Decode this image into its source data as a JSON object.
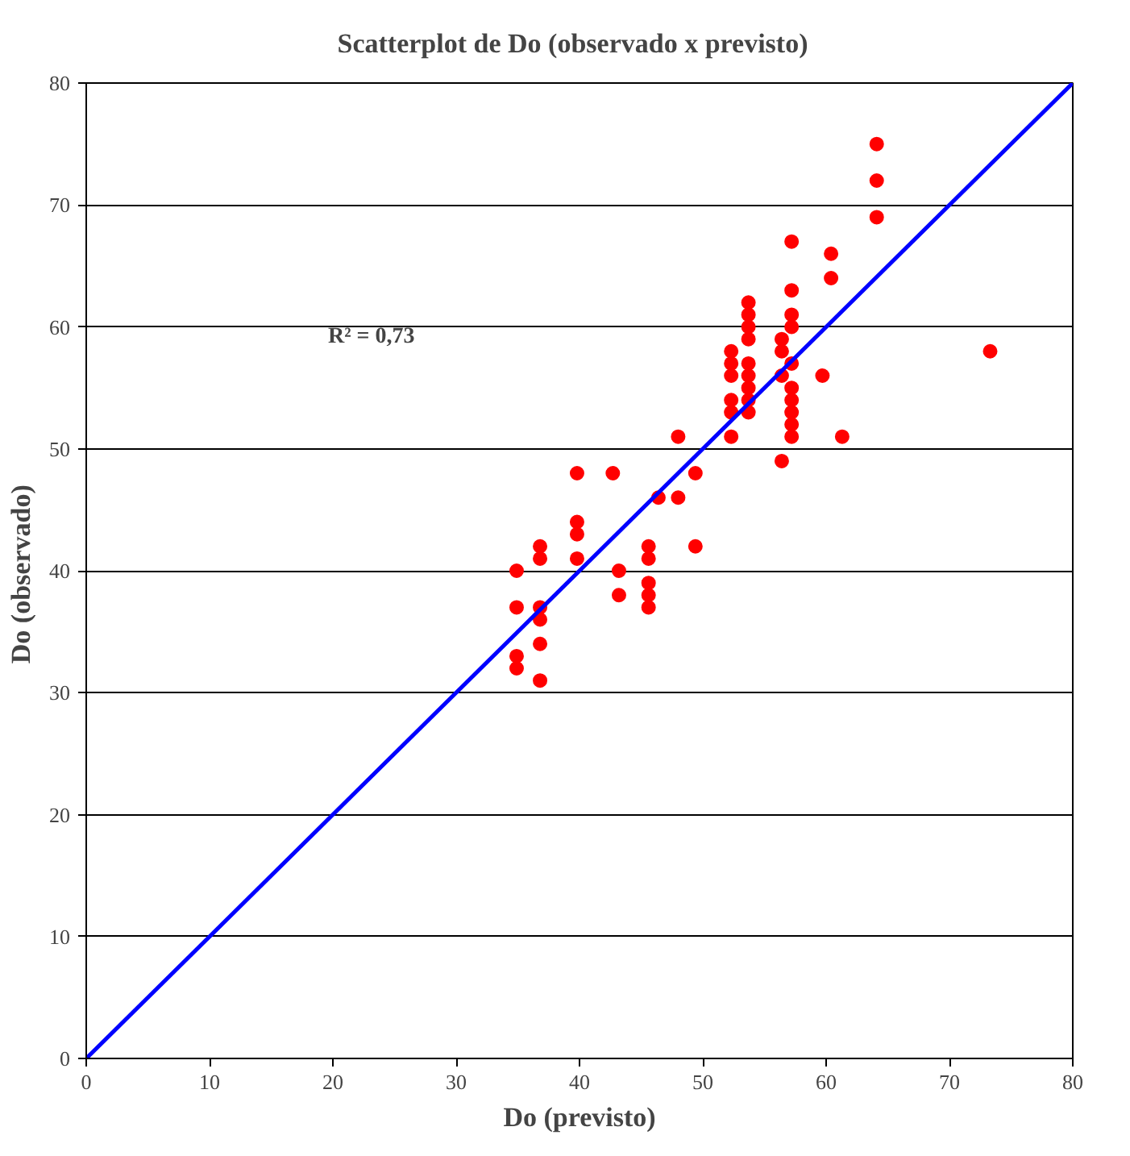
{
  "chart_data": {
    "type": "scatter",
    "title": "Scatterplot de Do  (observado x  previsto)",
    "xlabel": "Do (previsto)",
    "ylabel": "Do  (observado)",
    "xlim": [
      0,
      80
    ],
    "ylim": [
      0,
      80
    ],
    "xticks": [
      0,
      10,
      20,
      30,
      40,
      50,
      60,
      70,
      80
    ],
    "yticks": [
      0,
      10,
      20,
      30,
      40,
      50,
      60,
      70,
      80
    ],
    "grid": "y",
    "annotations": [
      "R² = 0,73"
    ],
    "series": [
      {
        "marker": "circle",
        "color": "#ff0000",
        "x": [
          34.9,
          34.9,
          34.9,
          34.9,
          36.8,
          36.8,
          36.8,
          36.8,
          36.8,
          36.8,
          39.8,
          39.8,
          39.8,
          39.8,
          42.7,
          43.2,
          43.2,
          45.6,
          45.6,
          45.6,
          45.6,
          45.6,
          46.4,
          48,
          48,
          49.4,
          49.4,
          52.3,
          52.3,
          52.3,
          52.3,
          52.3,
          52.3,
          53.7,
          53.7,
          53.7,
          53.7,
          53.7,
          53.7,
          53.7,
          53.7,
          53.7,
          56.4,
          56.4,
          56.4,
          56.4,
          57.2,
          57.2,
          57.2,
          57.2,
          57.2,
          57.2,
          57.2,
          57.2,
          57.2,
          57.2,
          59.7,
          60.4,
          60.4,
          61.3,
          64.1,
          64.1,
          64.1,
          73.3
        ],
        "values": [
          40,
          37,
          33,
          32,
          42,
          41,
          37,
          36,
          34,
          31,
          48,
          44,
          43,
          41,
          48,
          40,
          38,
          42,
          41,
          39,
          38,
          37,
          46,
          51,
          46,
          48,
          42,
          58,
          57,
          56,
          54,
          53,
          51,
          62,
          61,
          60,
          59,
          57,
          56,
          55,
          54,
          53,
          59,
          58,
          56,
          49,
          67,
          63,
          61,
          60,
          57,
          55,
          54,
          53,
          52,
          51,
          56,
          66,
          64,
          51,
          75,
          72,
          69,
          58
        ]
      },
      {
        "type": "line",
        "color": "#0000ff",
        "x": [
          0,
          80
        ],
        "values": [
          0,
          80
        ]
      }
    ]
  }
}
